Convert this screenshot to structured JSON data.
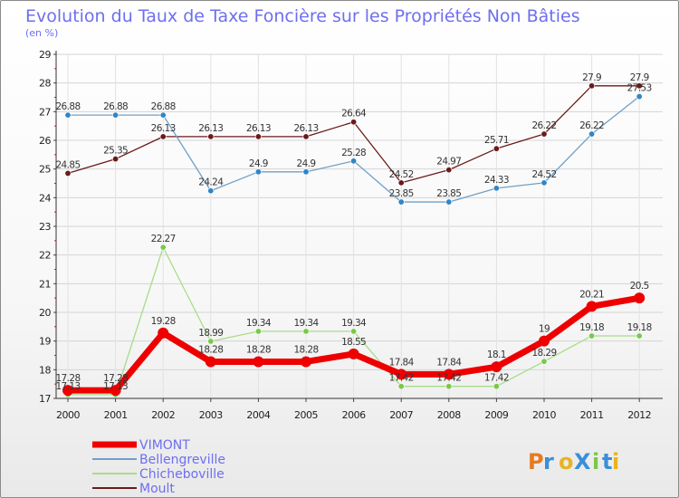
{
  "chart_data": {
    "type": "line",
    "title": "Evolution du Taux de Taxe Foncière sur les Propriétés Non Bâties",
    "ylabel": "(en %)",
    "x": [
      "2000",
      "2001",
      "2002",
      "2003",
      "2004",
      "2005",
      "2006",
      "2007",
      "2008",
      "2009",
      "2010",
      "2011",
      "2012"
    ],
    "ylim": [
      17,
      29
    ],
    "yticks": [
      17,
      18,
      19,
      20,
      21,
      22,
      23,
      24,
      25,
      26,
      27,
      28,
      29
    ],
    "series": [
      {
        "name": "Moult",
        "color": "#6b1a1a",
        "marker": "#6b1a1a",
        "width": 1.3,
        "r": 3.2,
        "values": [
          24.85,
          25.35,
          26.13,
          26.13,
          26.13,
          26.13,
          26.64,
          24.52,
          24.97,
          25.71,
          26.22,
          27.9,
          27.9
        ],
        "labels": [
          "24.85",
          "25.35",
          "26.13",
          "26.13",
          "26.13",
          "26.13",
          "26.64",
          "24.52",
          "24.97",
          "25.71",
          "26.22",
          "27.9",
          "27.9"
        ]
      },
      {
        "name": "Bellengreville",
        "color": "#6fa0c8",
        "marker": "#2f86c8",
        "width": 1.3,
        "r": 3.2,
        "values": [
          26.88,
          26.88,
          26.88,
          24.24,
          24.9,
          24.9,
          25.28,
          23.85,
          23.85,
          24.33,
          24.52,
          26.22,
          27.53
        ],
        "labels": [
          "26.88",
          "26.88",
          "26.88",
          "24.24",
          "24.9",
          "24.9",
          "25.28",
          "23.85",
          "23.85",
          "24.33",
          "24.52",
          "26.22",
          "27.53"
        ]
      },
      {
        "name": "Chicheboville",
        "color": "#a8dc88",
        "marker": "#7ac84a",
        "width": 1.3,
        "r": 3.2,
        "values": [
          17.13,
          17.13,
          22.27,
          18.99,
          19.34,
          19.34,
          19.34,
          17.42,
          17.42,
          17.42,
          18.29,
          19.18,
          19.18
        ],
        "labels": [
          "17.13",
          "17.13",
          "22.27",
          "18.99",
          "19.34",
          "19.34",
          "19.34",
          "17.42",
          "17.42",
          "17.42",
          "18.29",
          "19.18",
          "19.18"
        ]
      },
      {
        "name": "VIMONT",
        "color": "#ee0000",
        "marker": "#ee0000",
        "width": 7,
        "r": 6,
        "values": [
          17.28,
          17.28,
          19.28,
          18.28,
          18.28,
          18.28,
          18.55,
          17.84,
          17.84,
          18.1,
          19,
          20.21,
          20.5
        ],
        "labels": [
          "17.28",
          "17.28",
          "19.28",
          "18.28",
          "18.28",
          "18.28",
          "18.55",
          "17.84",
          "17.84",
          "18.1",
          "19",
          "20.21",
          "20.5"
        ]
      }
    ],
    "legend": [
      "VIMONT",
      "Bellengreville",
      "Chicheboville",
      "Moult"
    ],
    "legend_position": "bottom-left"
  },
  "logo": {
    "text": "ProXiti"
  }
}
